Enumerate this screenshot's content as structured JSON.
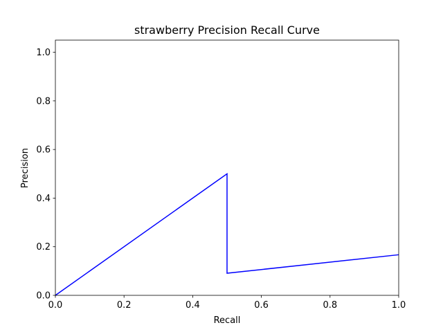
{
  "chart_data": {
    "type": "line",
    "title": "strawberry Precision Recall Curve",
    "xlabel": "Recall",
    "ylabel": "Precision",
    "xlim": [
      0.0,
      1.0
    ],
    "ylim": [
      0.0,
      1.05
    ],
    "xticks": [
      "0.0",
      "0.2",
      "0.4",
      "0.6",
      "0.8",
      "1.0"
    ],
    "yticks": [
      "0.0",
      "0.2",
      "0.4",
      "0.6",
      "0.8",
      "1.0"
    ],
    "grid": false,
    "series": [
      {
        "color": "#0000ff",
        "x": [
          0.0,
          0.5,
          0.5,
          1.0
        ],
        "y": [
          0.0,
          0.5,
          0.091,
          0.167
        ]
      }
    ]
  }
}
